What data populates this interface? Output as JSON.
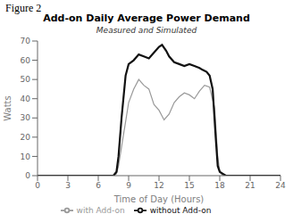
{
  "chart_data": {
    "type": "line",
    "title": "Add-on Daily Average Power Demand",
    "subtitle": "Measured and Simulated",
    "annotations": [
      "Figure 2"
    ],
    "xlabel": "Time of Day (Hours)",
    "ylabel": "Watts",
    "xlim": [
      0,
      24
    ],
    "ylim": [
      0,
      70
    ],
    "xticks": [
      0,
      3,
      6,
      9,
      12,
      15,
      18,
      21,
      24
    ],
    "yticks": [
      0,
      10,
      20,
      30,
      40,
      50,
      60,
      70
    ],
    "grid": false,
    "legend": "bottom",
    "series": [
      {
        "name": "with Add-on",
        "color": "#999999",
        "x": [
          0,
          7.5,
          7.8,
          8.0,
          8.3,
          8.7,
          9.0,
          9.5,
          10.0,
          10.5,
          11.0,
          11.5,
          12.0,
          12.5,
          13.0,
          13.5,
          14.0,
          14.5,
          15.0,
          15.5,
          16.0,
          16.5,
          17.0,
          17.5,
          17.8,
          18.0,
          18.3,
          19.0,
          24
        ],
        "values": [
          0,
          0,
          1,
          5,
          15,
          28,
          38,
          45,
          50,
          47,
          45,
          37,
          34,
          29,
          32,
          38,
          41,
          43,
          42,
          40,
          44,
          47,
          46,
          35,
          10,
          2,
          0,
          0,
          0
        ]
      },
      {
        "name": "without Add-on",
        "color": "#111111",
        "x": [
          0,
          7.5,
          7.8,
          8.0,
          8.3,
          8.7,
          9.0,
          9.5,
          10.0,
          10.5,
          11.0,
          11.5,
          12.0,
          12.3,
          12.7,
          13.0,
          13.5,
          14.0,
          14.5,
          15.0,
          15.5,
          16.0,
          16.3,
          16.7,
          17.0,
          17.3,
          17.6,
          17.8,
          18.0,
          18.3,
          18.6,
          19.0,
          24
        ],
        "values": [
          0,
          0,
          2,
          10,
          30,
          52,
          58,
          60,
          63,
          62,
          61,
          64,
          67,
          68,
          65,
          62,
          59,
          58,
          57,
          58,
          57,
          56,
          55,
          54,
          52,
          45,
          20,
          5,
          2,
          1,
          0,
          0,
          0
        ]
      }
    ]
  }
}
